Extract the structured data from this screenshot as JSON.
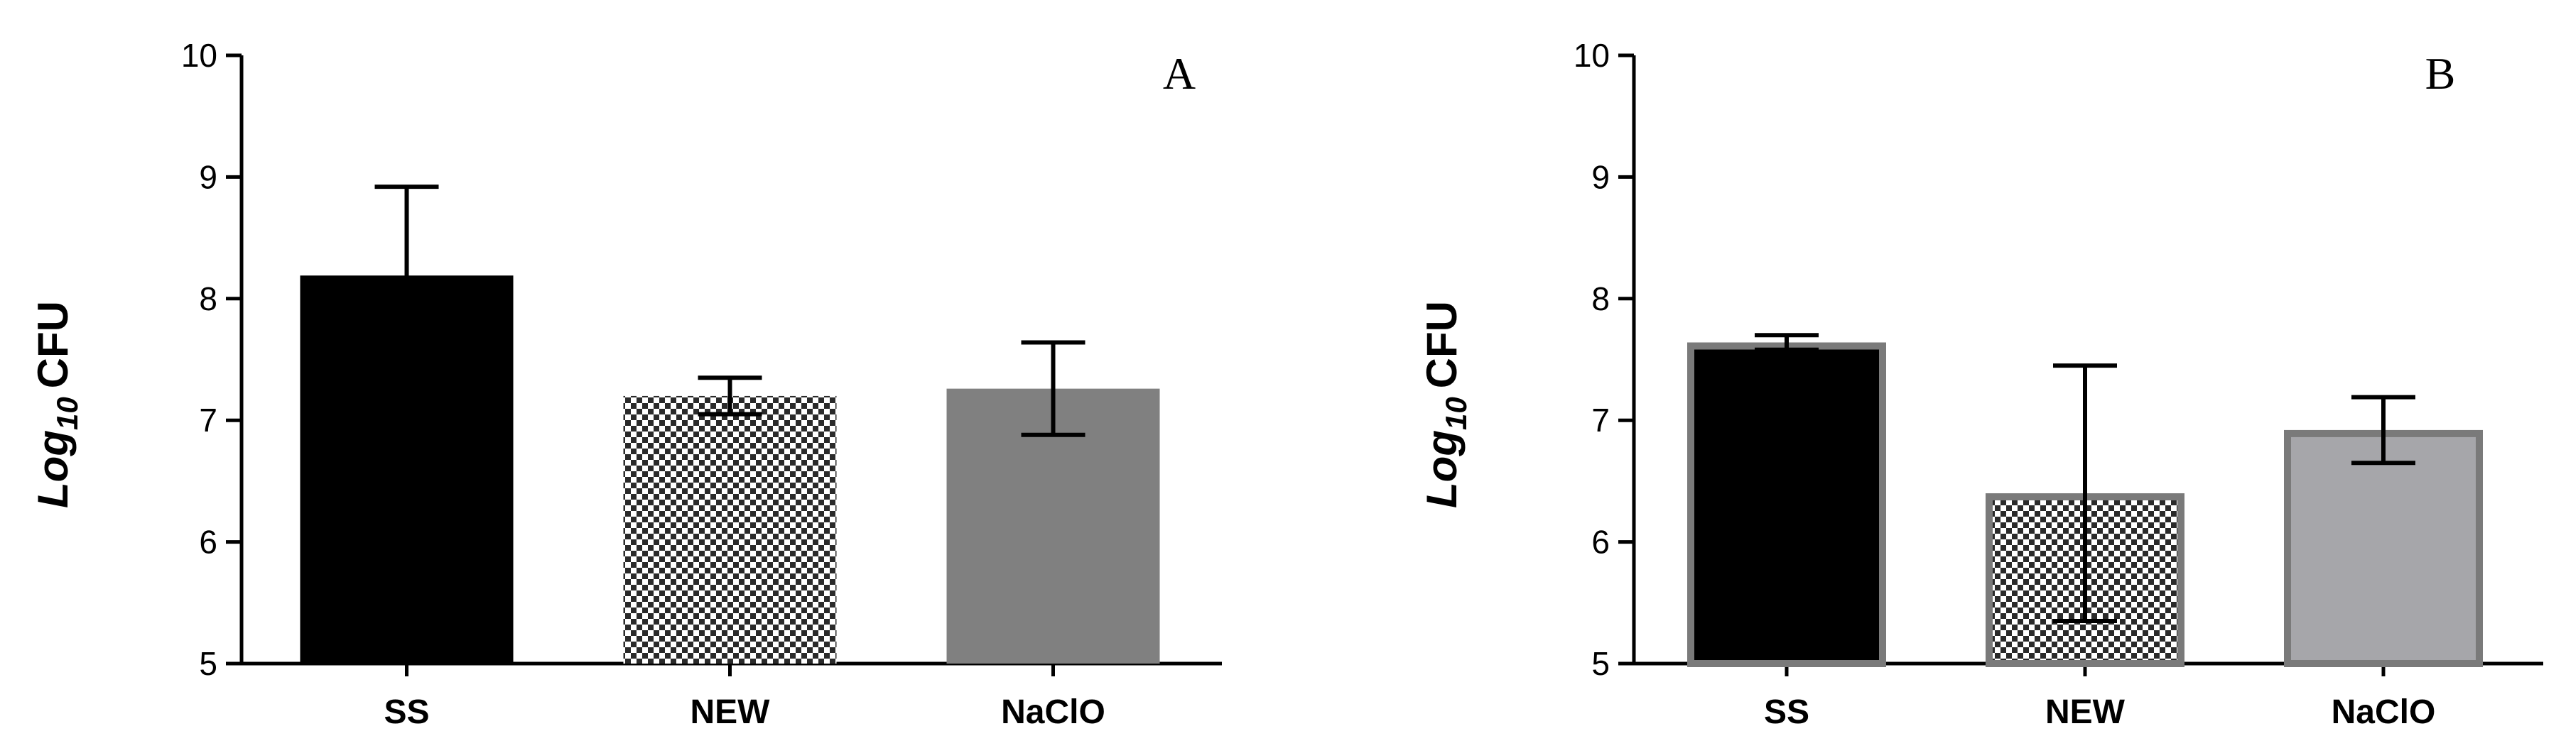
{
  "chart_data": [
    {
      "type": "bar",
      "panel_label": "A",
      "ylabel": {
        "base": "Log",
        "subscript": "10",
        "unit": "CFU"
      },
      "categories": [
        "SS",
        "NEW",
        "NaClO"
      ],
      "values": [
        8.19,
        7.2,
        7.26
      ],
      "error": [
        0.73,
        0.15,
        0.38
      ],
      "ylim": [
        5,
        10
      ],
      "yticks": [
        "5",
        "6",
        "7",
        "8",
        "9",
        "10"
      ],
      "bar_styles": [
        "solid-black",
        "checkered",
        "solid-gray"
      ],
      "colors": {
        "SS": "#000000",
        "NEW": "#3a3a3a",
        "NaClO": "#808080"
      }
    },
    {
      "type": "bar",
      "panel_label": "B",
      "ylabel": {
        "base": "Log",
        "subscript": "10",
        "unit": "CFU"
      },
      "categories": [
        "SS",
        "NEW",
        "NaClO"
      ],
      "values": [
        7.64,
        6.4,
        6.92
      ],
      "error": [
        0.06,
        1.05,
        0.27
      ],
      "ylim": [
        5,
        10
      ],
      "yticks": [
        "5",
        "6",
        "7",
        "8",
        "9",
        "10"
      ],
      "bar_styles": [
        "solid-black-gray-border",
        "checkered-gray-border",
        "light-gray-border"
      ],
      "colors": {
        "SS": "#000000",
        "NEW": "#3a3a3a",
        "NaClO": "#a6a6aa",
        "border": "#7a7a7a"
      }
    }
  ]
}
